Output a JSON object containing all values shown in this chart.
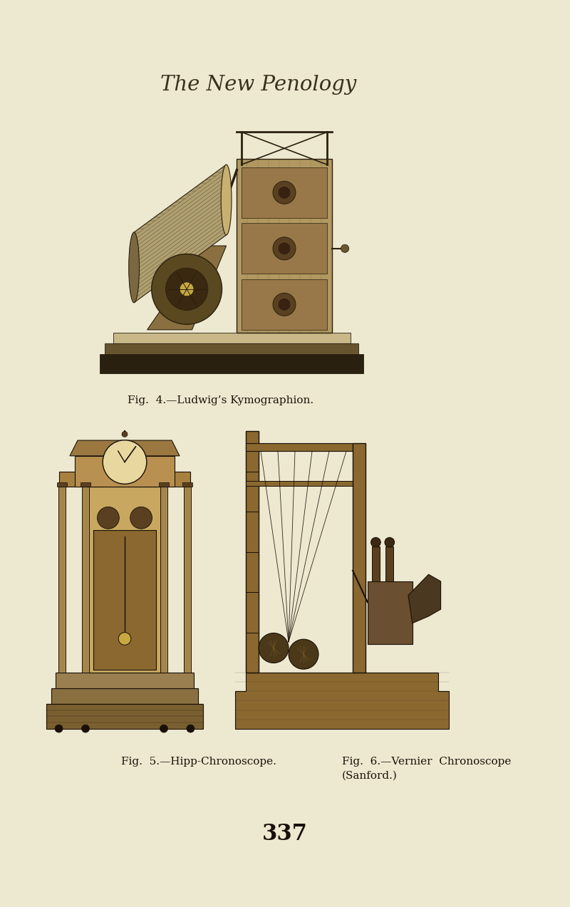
{
  "background_color": "#ede8d0",
  "title": "The New Penology",
  "title_fontsize": 21,
  "title_style": "italic",
  "title_family": "serif",
  "fig1_caption": "Fig.  4.—Ludwig’s Kymographion.",
  "fig1_cap_fontsize": 11,
  "fig5_caption": "Fig.  5.—Hipp-Chronoscope.",
  "fig5_cap_fontsize": 11,
  "fig6_caption_line1": "Fig.  6.—Vernier  Chronoscope",
  "fig6_caption_line2": "(Sanford.)",
  "fig6_cap_fontsize": 11,
  "page_number": "337",
  "page_num_fontsize": 22,
  "engraving_color": "#3a3020",
  "engraving_bg": "#d8c8a0"
}
